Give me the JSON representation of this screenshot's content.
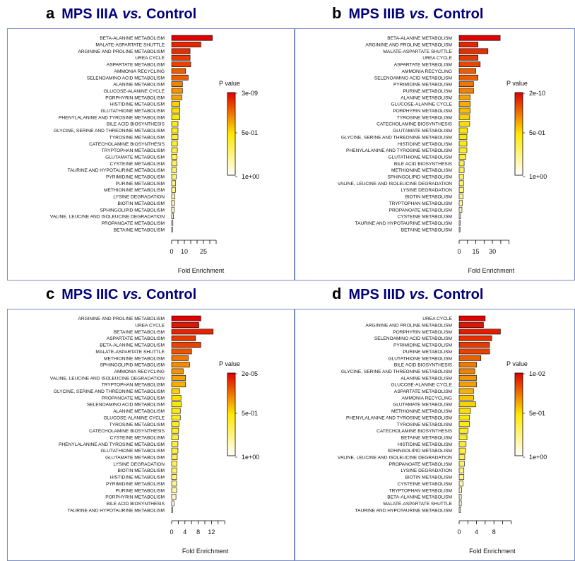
{
  "colors": {
    "title": "#00007a",
    "border": "#7b8cc4",
    "grad_top": "#e00000",
    "grad_mid": "#ffe800",
    "grad_bottom": "#ffffff"
  },
  "chart_data": [
    {
      "type": "bar",
      "panel_letter": "a",
      "title_name": "MPS IIIA",
      "title_vs": "vs.",
      "title_control": "Control",
      "xlabel": "Fold Enrichment",
      "xlim": [
        0,
        35
      ],
      "xticks": [
        0,
        10,
        25
      ],
      "legend_title": "P value",
      "legend_labels": [
        "3e-09",
        "5e-01",
        "1e+00"
      ],
      "categories": [
        "BETA-ALANINE METABOLISM",
        "MALATE-ASPARTATE SHUTTLE",
        "ARGININE AND PROLINE METABOLISM",
        "UREA CYCLE",
        "ASPARTATE METABOLISM",
        "AMMONIA RECYCLING",
        "SELENOAMINO ACID METABOLISM",
        "ALANINE METABOLISM",
        "GLUCOSE-ALANINE CYCLE",
        "PORPHYRIN METABOLISM",
        "HISTIDINE METABOLISM",
        "GLUTATHIONE METABOLISM",
        "PHENYLALANINE AND TYROSINE METABOLISM",
        "BILE ACID BIOSYNTHESIS",
        "GLYCINE, SERINE AND THREONINE METABOLISM",
        "TYROSINE METABOLISM",
        "CATECHOLAMINE BIOSYNTHESIS",
        "TRYPTOPHAN METABOLISM",
        "GLUTAMATE METABOLISM",
        "CYSTEINE METABOLISM",
        "TAURINE AND HYPOTAURINE METABOLISM",
        "PYRIMIDINE METABOLISM",
        "PURINE METABOLISM",
        "METHIONINE METABOLISM",
        "LYSINE DEGRADATION",
        "BIOTIN METABOLISM",
        "SPHINGOLIPID METABOLISM",
        "VALINE, LEUCINE AND ISOLEUCINE DEGRADATION",
        "PROPANOATE METABOLISM",
        "BETAINE METABOLISM"
      ],
      "values": [
        32,
        23,
        14.5,
        14.5,
        15,
        11,
        13,
        8.5,
        8.5,
        8,
        6.5,
        6.5,
        6.5,
        5,
        5,
        5,
        4.5,
        4.5,
        4.2,
        4.2,
        3.8,
        3.5,
        3.2,
        3,
        2.5,
        2.3,
        2,
        1.5,
        1,
        0.3
      ],
      "p_intensity": [
        1.0,
        0.92,
        0.9,
        0.88,
        0.86,
        0.8,
        0.8,
        0.72,
        0.68,
        0.65,
        0.55,
        0.52,
        0.5,
        0.45,
        0.45,
        0.4,
        0.38,
        0.36,
        0.34,
        0.32,
        0.3,
        0.28,
        0.25,
        0.22,
        0.18,
        0.15,
        0.12,
        0.1,
        0.05,
        0.02
      ]
    },
    {
      "type": "bar",
      "panel_letter": "b",
      "title_name": "MPS IIIB",
      "title_vs": "vs.",
      "title_control": "Control",
      "xlabel": "Fold Enrichment",
      "xlim": [
        0,
        40
      ],
      "xticks": [
        0,
        15,
        30
      ],
      "legend_title": "P value",
      "legend_labels": [
        "2e-10",
        "5e-01",
        "1e+00"
      ],
      "categories": [
        "BETA-ALANINE METABOLISM",
        "ARGININE AND PROLINE METABOLISM",
        "MALATE-ASPARTATE SHUTTLE",
        "UREA CYCLE",
        "ASPARTATE METABOLISM",
        "AMMONIA RECYCLING",
        "SELENOAMINO ACID METABOLISM",
        "PYRIMIDINE METABOLISM",
        "PURINE METABOLISM",
        "ALANINE METABOLISM",
        "GLUCOSE-ALANINE CYCLE",
        "PORPHYRIN METABOLISM",
        "TYROSINE METABOLISM",
        "CATECHOLAMINE BIOSYNTHESIS",
        "GLUTAMATE METABOLISM",
        "GLYCINE, SERINE AND THREONINE METABOLISM",
        "HISTIDINE METABOLISM",
        "PHENYLALANINE AND TYROSINE METABOLISM",
        "GLUTATHIONE METABOLISM",
        "BILE ACID BIOSYNTHESIS",
        "METHIONINE METABOLISM",
        "SPHINGOLIPID METABOLISM",
        "VALINE, LEUCINE AND ISOLEUCINE DEGRADATION",
        "LYSINE DEGRADATION",
        "BIOTIN METABOLISM",
        "TRYPTOPHAN METABOLISM",
        "PROPANOATE METABOLISM",
        "CYSTEINE METABOLISM",
        "TAURINE AND HYPOTAURINE METABOLISM",
        "BETAINE METABOLISM"
      ],
      "values": [
        37,
        17,
        26,
        17,
        19,
        15,
        17,
        13,
        13,
        10,
        10,
        10,
        9.5,
        9.5,
        7.5,
        7,
        7,
        7,
        6,
        4.5,
        4.5,
        4,
        4,
        4,
        3.5,
        3,
        2.5,
        1.2,
        0.9,
        0.3
      ],
      "p_intensity": [
        1.0,
        0.92,
        0.9,
        0.88,
        0.85,
        0.8,
        0.8,
        0.75,
        0.72,
        0.65,
        0.62,
        0.6,
        0.55,
        0.52,
        0.5,
        0.48,
        0.45,
        0.42,
        0.4,
        0.36,
        0.34,
        0.3,
        0.28,
        0.25,
        0.22,
        0.18,
        0.14,
        0.1,
        0.06,
        0.02
      ]
    },
    {
      "type": "bar",
      "panel_letter": "c",
      "title_name": "MPS IIIC",
      "title_vs": "vs.",
      "title_control": "Control",
      "xlabel": "Fold Enrichment",
      "xlim": [
        0,
        14
      ],
      "xticks": [
        0,
        4,
        8,
        12
      ],
      "legend_title": "P value",
      "legend_labels": [
        "2e-05",
        "5e-01",
        "1e+00"
      ],
      "categories": [
        "ARGININE AND PROLINE METABOLISM",
        "UREA CYCLE",
        "BETAINE METABOLISM",
        "ASPARTATE METABOLISM",
        "BETA-ALANINE METABOLISM",
        "MALATE-ASPARTATE SHUTTLE",
        "METHIONINE METABOLISM",
        "SPHINGOLIPID METABOLISM",
        "AMMONIA RECYCLING",
        "VALINE, LEUCINE AND ISOLEUCINE DEGRADATION",
        "TRYPTOPHAN METABOLISM",
        "GLYCINE, SERINE AND THREONINE METABOLISM",
        "PROPANOATE METABOLISM",
        "SELENOAMINO ACID METABOLISM",
        "ALANINE METABOLISM",
        "GLUCOSE-ALANINE CYCLE",
        "TYROSINE METABOLISM",
        "CATECHOLAMINE BIOSYNTHESIS",
        "CYSTEINE METABOLISM",
        "PHENYLALANINE AND TYROSINE METABOLISM",
        "GLUTATHIONE METABOLISM",
        "GLUTAMATE METABOLISM",
        "LYSINE DEGRADATION",
        "BIOTIN METABOLISM",
        "HISTIDINE METABOLISM",
        "PYRIMIDINE METABOLISM",
        "PURINE METABOLISM",
        "PORPHYRIN METABOLISM",
        "BILE ACID BIOSYNTHESIS",
        "TAURINE AND HYPOTAURINE METABOLISM"
      ],
      "values": [
        8.8,
        8.2,
        12.5,
        7.2,
        8.8,
        6,
        5,
        5.4,
        3.5,
        4.2,
        4.2,
        2.4,
        2.8,
        2.9,
        2.6,
        2.6,
        2.2,
        2.1,
        2,
        1.9,
        1.9,
        1.7,
        1.6,
        1.6,
        1.5,
        1.5,
        1.5,
        1.3,
        0.7,
        0.3
      ],
      "p_intensity": [
        1.0,
        0.95,
        0.92,
        0.88,
        0.86,
        0.82,
        0.75,
        0.7,
        0.68,
        0.65,
        0.62,
        0.55,
        0.52,
        0.5,
        0.48,
        0.46,
        0.44,
        0.42,
        0.4,
        0.38,
        0.36,
        0.34,
        0.32,
        0.3,
        0.26,
        0.22,
        0.18,
        0.12,
        0.06,
        0.02
      ]
    },
    {
      "type": "bar",
      "panel_letter": "d",
      "title_name": "MPS IIID",
      "title_vs": "vs.",
      "title_control": "Control",
      "xlabel": "Fold Enrichment",
      "xlim": [
        0,
        10
      ],
      "xticks": [
        0,
        4,
        8
      ],
      "legend_title": "P value",
      "legend_labels": [
        "1e-02",
        "5e-01",
        "1e+00"
      ],
      "categories": [
        "UREA CYCLE",
        "ARGININE AND PROLINE METABOLISM",
        "PORPHYRIN METABOLISM",
        "SELENOAMINO ACID METABOLISM",
        "PYRIMIDINE METABOLISM",
        "PURINE METABOLISM",
        "GLUTATHIONE METABOLISM",
        "BILE ACID BIOSYNTHESIS",
        "GLYCINE, SERINE AND THREONINE METABOLISM",
        "ALANINE METABOLISM",
        "GLUCOSE-ALANINE CYCLE",
        "ASPARTATE METABOLISM",
        "AMMONIA RECYCLING",
        "GLUTAMATE METABOLISM",
        "METHIONINE METABOLISM",
        "PHENYLALANINE AND TYROSINE METABOLISM",
        "TYROSINE METABOLISM",
        "CATECHOLAMINE BIOSYNTHESIS",
        "BETAINE METABOLISM",
        "HISTIDINE METABOLISM",
        "SPHINGOLIPID METABOLISM",
        "VALINE, LEUCINE AND ISOLEUCINE DEGRADATION",
        "PROPANOATE METABOLISM",
        "LYSINE DEGRADATION",
        "BIOTIN METABOLISM",
        "CYSTEINE METABOLISM",
        "TRYPTOPHAN METABOLISM",
        "BETA-ALANINE METABOLISM",
        "MALATE-ASPARTATE SHUTTLE",
        "TAURINE AND HYPOTAURINE METABOLISM"
      ],
      "values": [
        6,
        5.6,
        9.5,
        7.5,
        7,
        7,
        5,
        4,
        3.6,
        4,
        4,
        3.3,
        3.3,
        3.8,
        2.6,
        2.4,
        2.4,
        2,
        1.8,
        1.6,
        1.5,
        1.3,
        1.2,
        1.1,
        1.1,
        0.9,
        0.6,
        0.5,
        0.5,
        0.3
      ],
      "p_intensity": [
        1.0,
        0.96,
        0.94,
        0.9,
        0.88,
        0.86,
        0.8,
        0.74,
        0.72,
        0.68,
        0.66,
        0.62,
        0.58,
        0.55,
        0.52,
        0.5,
        0.46,
        0.44,
        0.42,
        0.4,
        0.38,
        0.34,
        0.3,
        0.26,
        0.22,
        0.18,
        0.14,
        0.1,
        0.06,
        0.02
      ]
    }
  ]
}
